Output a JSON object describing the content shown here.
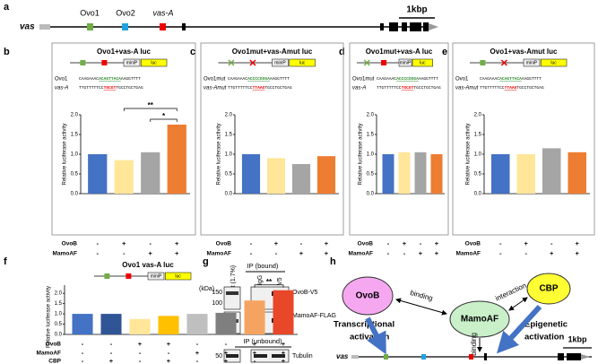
{
  "panel_labels": [
    "a",
    "b",
    "c",
    "d",
    "e",
    "f",
    "g",
    "h"
  ],
  "gene_map": {
    "gene": "vas",
    "elements": [
      "Ovo1",
      "Ovo2",
      "vas-A"
    ],
    "scale": "1kbp"
  },
  "chart_data": [
    {
      "type": "bar",
      "title": "Ovo1+vas-A luc",
      "construct": [
        "miniP",
        "luc"
      ],
      "sequences": [
        {
          "name": "Ovo1",
          "parts": [
            "CAAGAAAC",
            "ACAGTTACA",
            "AAGGTTTT"
          ]
        },
        {
          "name": "vas-A",
          "parts": [
            "TTGTTTTTCC",
            "TGCGT",
            "TGCCTGCTGAG"
          ]
        }
      ],
      "ylabel": "Relative luciferase activity",
      "values": [
        1.0,
        0.85,
        1.05,
        1.75
      ],
      "colors": [
        "#4472c4",
        "#ffe699",
        "#a5a5a5",
        "#ed7d31"
      ],
      "ylim": [
        0,
        2
      ],
      "yticks": [
        {
          "value": 0,
          "label": "0.0"
        },
        {
          "value": 0.5,
          "label": "0.5"
        },
        {
          "value": 1,
          "label": "1.0"
        },
        {
          "value": 1.5,
          "label": "1.5"
        },
        {
          "value": 2,
          "label": "2.0"
        }
      ],
      "significance": [
        {
          "label": "**",
          "bars": [
            1,
            3
          ]
        },
        {
          "label": "*",
          "bars": [
            2,
            3
          ]
        }
      ],
      "conditions": [
        {
          "name": "OvoB",
          "signs": [
            "-",
            "+",
            "-",
            "+"
          ]
        },
        {
          "name": "MamoAF",
          "signs": [
            "-",
            "-",
            "+",
            "+"
          ]
        }
      ]
    },
    {
      "type": "bar",
      "title": "Ovo1mut+vas-Amut luc",
      "construct": [
        "miniP",
        "luc"
      ],
      "sequences": [
        {
          "name": "Ovo1mut",
          "parts": [
            "CAAGAAAC",
            "ACCCCGGGA",
            "AAGGTTTT"
          ]
        },
        {
          "name": "vas-Amut",
          "parts": [
            "TTGTTTTTCC",
            "TTAAG",
            "TGCCTGCTGAG"
          ]
        }
      ],
      "ylabel": "Relative luciferase activity",
      "values": [
        1.0,
        0.9,
        0.75,
        0.95
      ],
      "colors": [
        "#4472c4",
        "#ffe699",
        "#a5a5a5",
        "#ed7d31"
      ],
      "ylim": [
        0,
        2
      ],
      "yticks": [
        {
          "value": 0,
          "label": "0.0"
        },
        {
          "value": 0.5,
          "label": "0.5"
        },
        {
          "value": 1,
          "label": "1.0"
        },
        {
          "value": 1.5,
          "label": "1.5"
        },
        {
          "value": 2,
          "label": "2.0"
        }
      ],
      "conditions": [
        {
          "name": "OvoB",
          "signs": [
            "-",
            "+",
            "-",
            "+"
          ]
        },
        {
          "name": "MamoAF",
          "signs": [
            "-",
            "-",
            "+",
            "+"
          ]
        }
      ]
    },
    {
      "type": "bar",
      "title": "Ovo1mut+vas-A luc",
      "construct": [
        "miniP",
        "luc"
      ],
      "sequences": [
        {
          "name": "Ovo1mut",
          "parts": [
            "CAAGAAAC",
            "ACCCCGGGA",
            "AAGGTTTT"
          ]
        },
        {
          "name": "vas-A",
          "parts": [
            "TTGTTTTTCC",
            "TGCGT",
            "TGCCTGCTGAG"
          ]
        }
      ],
      "ylabel": "Relative luciferase activity",
      "values": [
        1.0,
        1.05,
        1.05,
        1.0
      ],
      "colors": [
        "#4472c4",
        "#ffe699",
        "#a5a5a5",
        "#ed7d31"
      ],
      "ylim": [
        0,
        2
      ],
      "yticks": [
        {
          "value": 0,
          "label": "0.0"
        },
        {
          "value": 0.5,
          "label": "0.5"
        },
        {
          "value": 1,
          "label": "1.0"
        },
        {
          "value": 1.5,
          "label": "1.5"
        },
        {
          "value": 2,
          "label": "2.0"
        }
      ],
      "conditions": [
        {
          "name": "OvoB",
          "signs": [
            "-",
            "+",
            "-",
            "+"
          ]
        },
        {
          "name": "MamoAF",
          "signs": [
            "-",
            "-",
            "+",
            "+"
          ]
        }
      ]
    },
    {
      "type": "bar",
      "title": "Ovo1+vas-Amut luc",
      "construct": [
        "miniP",
        "luc"
      ],
      "sequences": [
        {
          "name": "Ovo1",
          "parts": [
            "CAAGAAAC",
            "ACAGTTACA",
            "AAGGTTTT"
          ]
        },
        {
          "name": "vas-Amut",
          "parts": [
            "TTGTTTTTCC",
            "TTAAG",
            "TGCCTGCTGAG"
          ]
        }
      ],
      "ylabel": "Relative luciferase activity",
      "values": [
        1.0,
        1.0,
        1.15,
        1.05
      ],
      "colors": [
        "#4472c4",
        "#ffe699",
        "#a5a5a5",
        "#ed7d31"
      ],
      "ylim": [
        0,
        2
      ],
      "yticks": [
        {
          "value": 0,
          "label": "0.0"
        },
        {
          "value": 0.5,
          "label": "0.5"
        },
        {
          "value": 1,
          "label": "1.0"
        },
        {
          "value": 1.5,
          "label": "1.5"
        },
        {
          "value": 2,
          "label": "2.0"
        }
      ],
      "conditions": [
        {
          "name": "OvoB",
          "signs": [
            "-",
            "+",
            "-",
            "+"
          ]
        },
        {
          "name": "MamoAF",
          "signs": [
            "-",
            "-",
            "+",
            "+"
          ]
        }
      ]
    },
    {
      "type": "bar",
      "title": "Ovo1 vas-A luc",
      "construct": [
        "miniP",
        "luc"
      ],
      "ylabel": "Relative luciferase activity",
      "values": [
        1.0,
        1.0,
        0.75,
        0.9,
        1.0,
        1.05,
        1.65,
        2.15
      ],
      "colors": [
        "#4472c4",
        "#2f5597",
        "#ffe699",
        "#ffc000",
        "#bfbfbf",
        "#7f7f7f",
        "#f4a460",
        "#e8472a"
      ],
      "ylim": [
        0,
        2.4
      ],
      "yticks": [
        {
          "value": 0,
          "label": "0.0"
        },
        {
          "value": 0.5,
          "label": "0.5"
        },
        {
          "value": 1,
          "label": "1.0"
        },
        {
          "value": 1.5,
          "label": "1.5"
        },
        {
          "value": 2,
          "label": "2.0"
        }
      ],
      "significance": [
        {
          "label": "**",
          "bars": [
            6,
            7
          ]
        }
      ],
      "conditions": [
        {
          "name": "OvoB",
          "signs": [
            "-",
            "-",
            "+",
            "+",
            "-",
            "-",
            "+",
            "+"
          ]
        },
        {
          "name": "MamoAF",
          "signs": [
            "-",
            "-",
            "-",
            "-",
            "+",
            "+",
            "+",
            "+"
          ]
        },
        {
          "name": "CBP",
          "signs": [
            "-",
            "+",
            "-",
            "+",
            "-",
            "+",
            "-",
            "+"
          ]
        }
      ]
    }
  ],
  "blot": {
    "unit": "(kDa)",
    "bound_header": "IP (bound)",
    "unbound_header": "IP (unbound)",
    "lanes": [
      "Input (1.7%)",
      "IgG",
      "V5"
    ],
    "markers": [
      "150",
      "100",
      "50",
      "50"
    ],
    "targets": [
      "OvoB-V5",
      "MamoAF-FLAG",
      "Tubulin"
    ]
  },
  "model": {
    "proteins": [
      "OvoB",
      "MamoAF",
      "CBP"
    ],
    "links": [
      "binding",
      "interaction",
      "binding"
    ],
    "transcriptional": [
      "Transcriptional",
      "activation"
    ],
    "epigenetic": [
      "Epigenetic",
      "activation"
    ],
    "gene": "vas",
    "scale": "1kbp"
  }
}
